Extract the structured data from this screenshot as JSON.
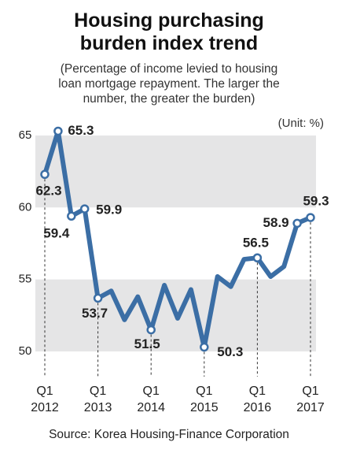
{
  "chart_data": {
    "type": "line",
    "title": "Housing purchasing\nburden index trend",
    "subtitle": "(Percentage of income levied to housing\nloan mortgage repayment. The larger the\nnumber, the greater the burden)",
    "unit_note": "(Unit: %)",
    "source": "Source: Korea Housing-Finance Corporation",
    "categories": [
      "Q1\n2012",
      null,
      null,
      null,
      "Q1\n2013",
      null,
      null,
      null,
      "Q1\n2014",
      null,
      null,
      null,
      "Q1\n2015",
      null,
      null,
      null,
      "Q1\n2016",
      null,
      null,
      null,
      "Q1\n2017"
    ],
    "values": [
      62.3,
      65.3,
      59.4,
      59.9,
      53.7,
      54.2,
      52.2,
      53.8,
      51.5,
      54.6,
      52.3,
      54.3,
      50.3,
      55.2,
      54.5,
      56.4,
      56.5,
      55.2,
      55.9,
      58.9,
      59.3
    ],
    "value_labels": [
      "62.3",
      "65.3",
      "59.4",
      "59.9",
      "53.7",
      null,
      null,
      null,
      "51.5",
      null,
      null,
      null,
      "50.3",
      null,
      null,
      null,
      "56.5",
      null,
      null,
      "58.9",
      "59.3"
    ],
    "color": "#3b6ea5",
    "band_color": "#e5e5e6",
    "ylim": [
      48.25,
      66.2
    ],
    "yticks": [
      50,
      55,
      60,
      65
    ]
  }
}
